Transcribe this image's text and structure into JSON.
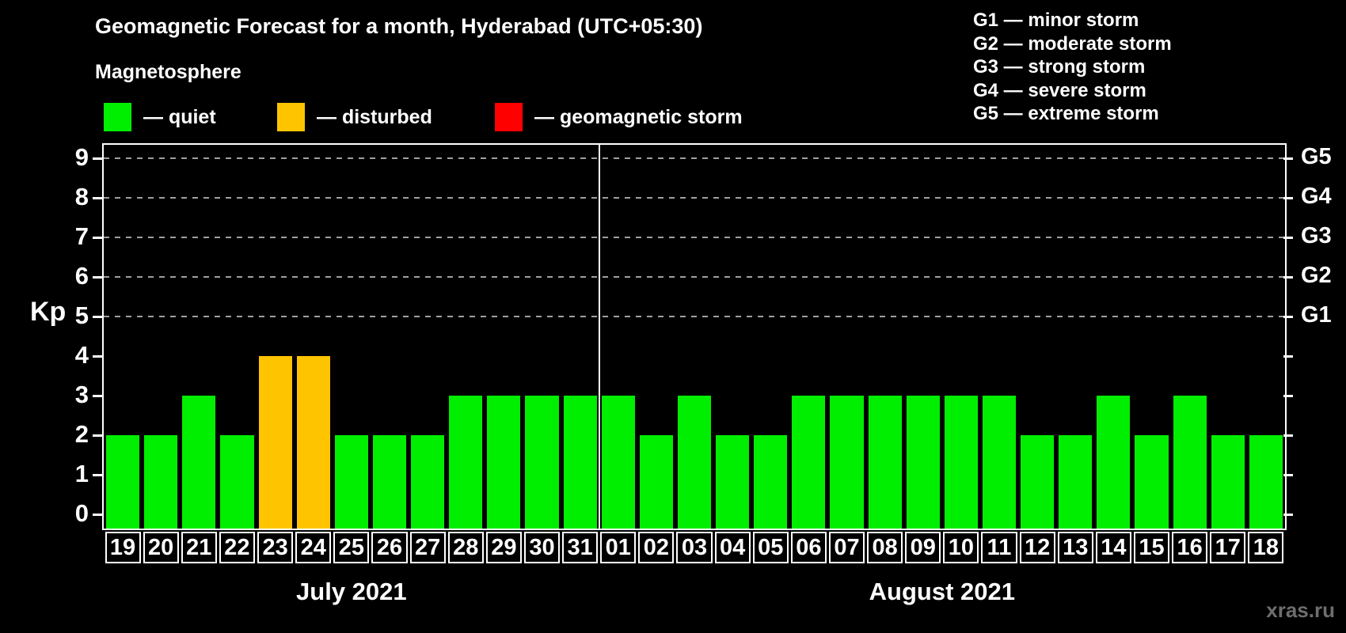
{
  "header": {
    "title": "Geomagnetic Forecast for a month, Hyderabad (UTC+05:30)",
    "legend_heading": "Magnetosphere",
    "legend_items": [
      {
        "state": "quiet",
        "color": "#00ee00",
        "label": "— quiet"
      },
      {
        "state": "disturbed",
        "color": "#ffc400",
        "label": "— disturbed"
      },
      {
        "state": "storm",
        "color": "#ff0000",
        "label": "— geomagnetic storm"
      }
    ],
    "storm_scale": [
      "G1 — minor storm",
      "G2 — moderate storm",
      "G3 — strong storm",
      "G4 — severe storm",
      "G5 — extreme storm"
    ]
  },
  "watermark": "xras.ru",
  "chart_data": {
    "type": "bar",
    "ylabel": "Kp",
    "ylim": [
      -0.36,
      9.34
    ],
    "yticks": [
      0,
      1,
      2,
      3,
      4,
      5,
      6,
      7,
      8,
      9
    ],
    "gridlines": [
      5,
      6,
      7,
      8,
      9
    ],
    "right_labels": [
      {
        "value": 5,
        "label": "G1"
      },
      {
        "value": 6,
        "label": "G2"
      },
      {
        "value": 7,
        "label": "G3"
      },
      {
        "value": 8,
        "label": "G4"
      },
      {
        "value": 9,
        "label": "G5"
      }
    ],
    "colors": {
      "quiet": "#00ee00",
      "disturbed": "#ffc400",
      "storm": "#ff0000"
    },
    "groups": [
      {
        "label": "July 2021",
        "days": [
          {
            "day": "19",
            "kp": 2,
            "state": "quiet"
          },
          {
            "day": "20",
            "kp": 2,
            "state": "quiet"
          },
          {
            "day": "21",
            "kp": 3,
            "state": "quiet"
          },
          {
            "day": "22",
            "kp": 2,
            "state": "quiet"
          },
          {
            "day": "23",
            "kp": 4,
            "state": "disturbed"
          },
          {
            "day": "24",
            "kp": 4,
            "state": "disturbed"
          },
          {
            "day": "25",
            "kp": 2,
            "state": "quiet"
          },
          {
            "day": "26",
            "kp": 2,
            "state": "quiet"
          },
          {
            "day": "27",
            "kp": 2,
            "state": "quiet"
          },
          {
            "day": "28",
            "kp": 3,
            "state": "quiet"
          },
          {
            "day": "29",
            "kp": 3,
            "state": "quiet"
          },
          {
            "day": "30",
            "kp": 3,
            "state": "quiet"
          },
          {
            "day": "31",
            "kp": 3,
            "state": "quiet"
          }
        ]
      },
      {
        "label": "August 2021",
        "days": [
          {
            "day": "01",
            "kp": 3,
            "state": "quiet"
          },
          {
            "day": "02",
            "kp": 2,
            "state": "quiet"
          },
          {
            "day": "03",
            "kp": 3,
            "state": "quiet"
          },
          {
            "day": "04",
            "kp": 2,
            "state": "quiet"
          },
          {
            "day": "05",
            "kp": 2,
            "state": "quiet"
          },
          {
            "day": "06",
            "kp": 3,
            "state": "quiet"
          },
          {
            "day": "07",
            "kp": 3,
            "state": "quiet"
          },
          {
            "day": "08",
            "kp": 3,
            "state": "quiet"
          },
          {
            "day": "09",
            "kp": 3,
            "state": "quiet"
          },
          {
            "day": "10",
            "kp": 3,
            "state": "quiet"
          },
          {
            "day": "11",
            "kp": 3,
            "state": "quiet"
          },
          {
            "day": "12",
            "kp": 2,
            "state": "quiet"
          },
          {
            "day": "13",
            "kp": 2,
            "state": "quiet"
          },
          {
            "day": "14",
            "kp": 3,
            "state": "quiet"
          },
          {
            "day": "15",
            "kp": 2,
            "state": "quiet"
          },
          {
            "day": "16",
            "kp": 3,
            "state": "quiet"
          },
          {
            "day": "17",
            "kp": 2,
            "state": "quiet"
          },
          {
            "day": "18",
            "kp": 2,
            "state": "quiet"
          }
        ]
      }
    ]
  }
}
